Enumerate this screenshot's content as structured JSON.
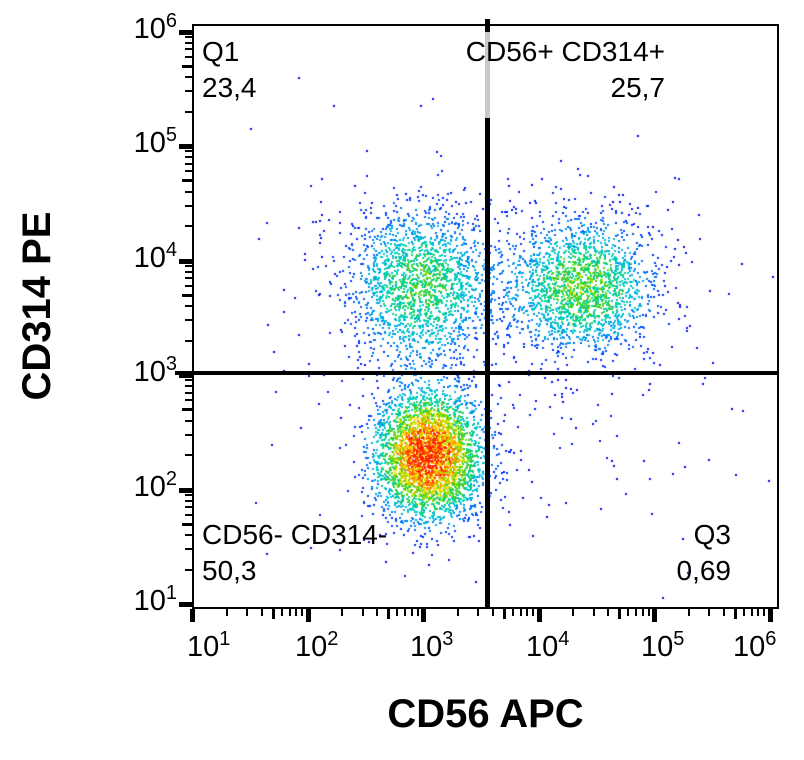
{
  "chart_data": {
    "type": "scatter",
    "subtype": "flow-cytometry-pseudocolor-density-dot-plot",
    "xlabel": "CD56 APC",
    "ylabel": "CD314 PE",
    "x_scale": "log",
    "y_scale": "log",
    "x_domain_log10": [
      1.0,
      6.07
    ],
    "y_domain_log10": [
      0.97,
      6.06
    ],
    "tick_base": "10",
    "x_tick_exponents": [
      1,
      2,
      3,
      4,
      5,
      6
    ],
    "y_tick_exponents": [
      1,
      2,
      3,
      4,
      5,
      6
    ],
    "grid": "off",
    "quadrant_gate": {
      "x_log10": 3.56,
      "y_log10": 3.02,
      "x_value_approx": 3600,
      "y_value_approx": 1050
    },
    "quadrants": {
      "top_left": {
        "label": "Q1",
        "percent": "23,4"
      },
      "top_right": {
        "label": "CD56+ CD314+",
        "percent": "25,7"
      },
      "bottom_left": {
        "label": "CD56- CD314-",
        "percent": "50,3"
      },
      "bottom_right": {
        "label": "Q3",
        "percent": "0,69"
      }
    },
    "populations": [
      {
        "name": "upper-left-cluster",
        "center_log10": [
          2.95,
          3.8
        ],
        "sigma_log10": [
          0.3,
          0.34
        ],
        "events": 1600
      },
      {
        "name": "upper-right-cluster",
        "center_log10": [
          4.38,
          3.78
        ],
        "sigma_log10": [
          0.31,
          0.29
        ],
        "events": 1750
      },
      {
        "name": "lower-left-cluster",
        "center_log10": [
          3.04,
          2.31
        ],
        "sigma_log10": [
          0.23,
          0.27
        ],
        "events": 3400
      },
      {
        "name": "upper-bridge",
        "center_log10": [
          3.65,
          3.8
        ],
        "sigma_log10": [
          0.38,
          0.3
        ],
        "events": 220
      },
      {
        "name": "left-vertical-tail",
        "center_log10": [
          3.0,
          3.1
        ],
        "sigma_log10": [
          0.28,
          0.4
        ],
        "events": 120
      },
      {
        "name": "upper-left-halo",
        "center_log10": [
          2.95,
          3.85
        ],
        "sigma_log10": [
          0.6,
          0.6
        ],
        "events": 160
      },
      {
        "name": "upper-right-halo",
        "center_log10": [
          4.4,
          3.8
        ],
        "sigma_log10": [
          0.6,
          0.55
        ],
        "events": 130
      },
      {
        "name": "lower-left-halo",
        "center_log10": [
          3.05,
          2.3
        ],
        "sigma_log10": [
          0.42,
          0.5
        ],
        "events": 170
      },
      {
        "name": "lower-right-scatter",
        "center_log10": [
          4.35,
          2.45
        ],
        "sigma_log10": [
          0.75,
          0.6
        ],
        "events": 60
      }
    ],
    "density_colormap": [
      [
        0.0,
        "#0000e8"
      ],
      [
        0.15,
        "#0040ff"
      ],
      [
        0.3,
        "#00b4e6"
      ],
      [
        0.42,
        "#00d8b0"
      ],
      [
        0.52,
        "#2ecc2e"
      ],
      [
        0.64,
        "#9be000"
      ],
      [
        0.74,
        "#ffe000"
      ],
      [
        0.85,
        "#ff9000"
      ],
      [
        0.93,
        "#ff5000"
      ],
      [
        1.0,
        "#ff1e00"
      ]
    ],
    "gate_handle_color": "#c9c9c9",
    "dot_size_px": 2
  }
}
